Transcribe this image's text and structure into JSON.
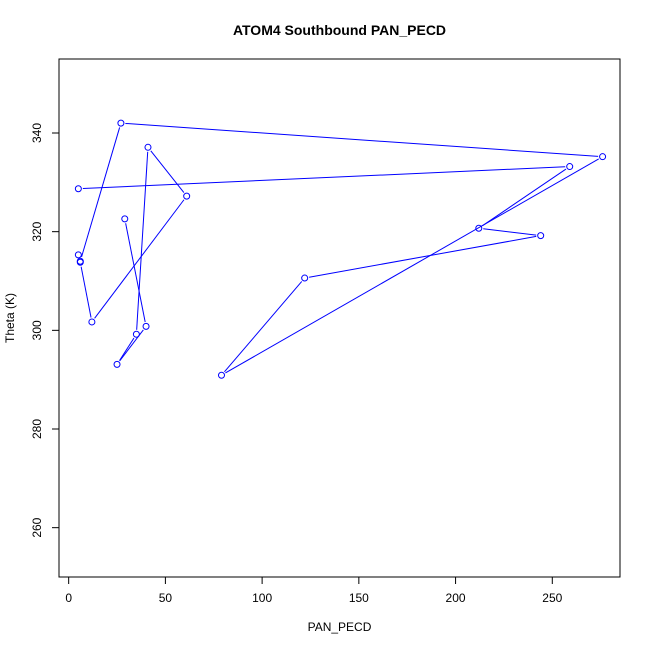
{
  "chart_data": {
    "type": "line",
    "title": "ATOM4 Southbound PAN_PECD",
    "xlabel": "PAN_PECD",
    "ylabel": "Theta (K)",
    "xlim": [
      -5,
      285
    ],
    "ylim": [
      250,
      355
    ],
    "x_ticks": [
      0,
      50,
      100,
      150,
      200,
      250
    ],
    "y_ticks": [
      260,
      280,
      300,
      320,
      340
    ],
    "x_tick_labels": [
      "0",
      "50",
      "100",
      "150",
      "200",
      "250"
    ],
    "y_tick_labels": [
      "260",
      "280",
      "300",
      "320",
      "340"
    ],
    "grid": false,
    "legend": "none",
    "series_color": "#0000ff",
    "markers": "open-circle",
    "points": [
      {
        "x": 5,
        "y": 328.7
      },
      {
        "x": 259,
        "y": 333.2
      },
      {
        "x": 212,
        "y": 320.7
      },
      {
        "x": 244,
        "y": 319.2
      },
      {
        "x": 122,
        "y": 310.6
      },
      {
        "x": 79,
        "y": 290.9
      },
      {
        "x": 276,
        "y": 335.2
      },
      {
        "x": 27,
        "y": 342.0
      },
      {
        "x": 6,
        "y": 314.0
      },
      {
        "x": 5,
        "y": 315.3
      },
      {
        "x": 6,
        "y": 313.8
      },
      {
        "x": 12,
        "y": 301.7
      },
      {
        "x": 61,
        "y": 327.2
      },
      {
        "x": 41,
        "y": 337.1
      },
      {
        "x": 35,
        "y": 299.2
      },
      {
        "x": 25,
        "y": 293.1
      },
      {
        "x": 40,
        "y": 300.8
      },
      {
        "x": 29,
        "y": 322.6
      }
    ]
  }
}
